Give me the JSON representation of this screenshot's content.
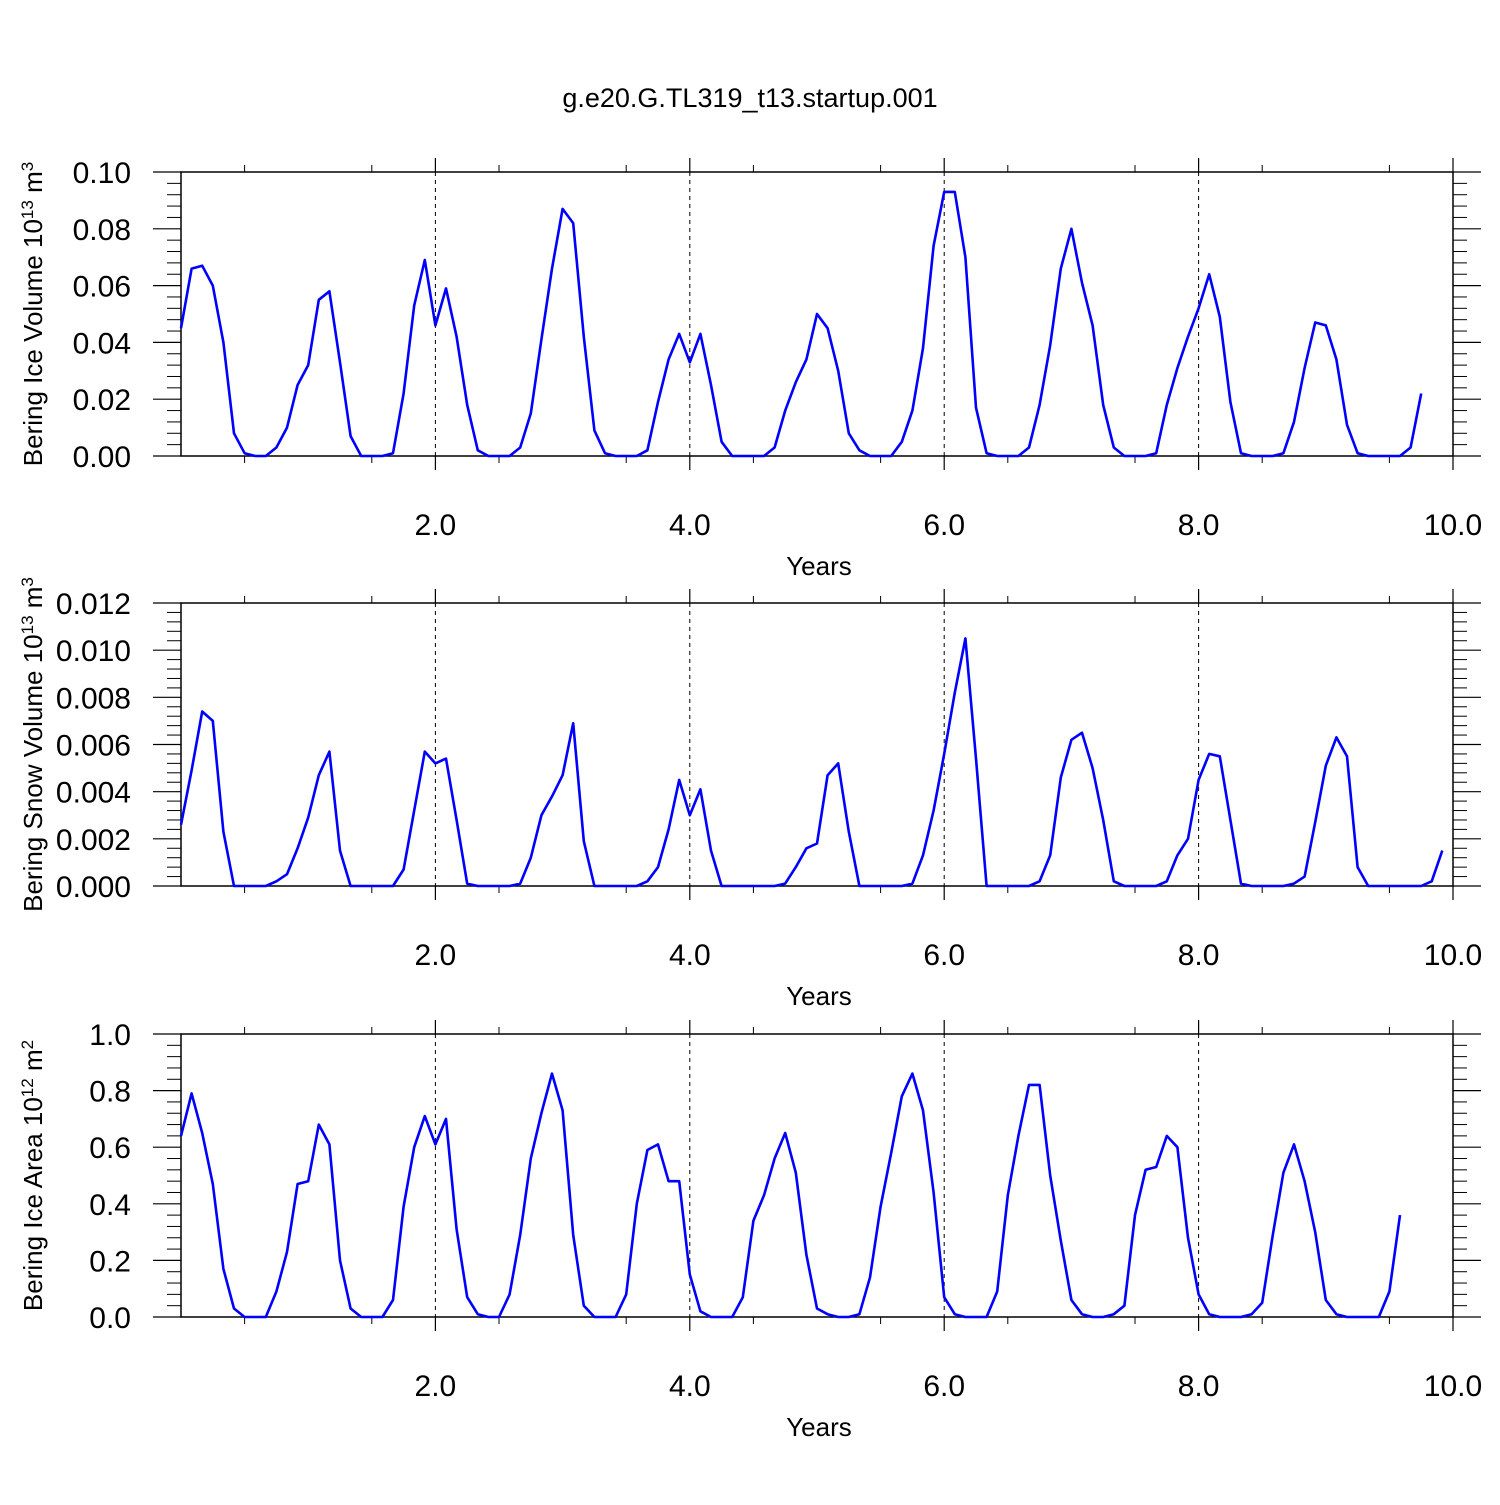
{
  "title": "g.e20.G.TL319_t13.startup.001",
  "line_color": "#0000ff",
  "chart_data": [
    {
      "type": "line",
      "ylabel_main": "Bering Ice Volume 10",
      "ylabel_exp": "13",
      "ylabel_unit": " m",
      "ylabel_unit_exp": "3",
      "xlabel": "Years",
      "xlim": [
        0.0,
        10.0
      ],
      "ylim": [
        0.0,
        0.1
      ],
      "x_ticks": [
        2.0,
        4.0,
        6.0,
        8.0,
        10.0
      ],
      "x_tick_labels": [
        "2.0",
        "4.0",
        "6.0",
        "8.0",
        "10.0"
      ],
      "y_ticks": [
        0.0,
        0.02,
        0.04,
        0.06,
        0.08,
        0.1
      ],
      "y_tick_labels": [
        "0.00",
        "0.02",
        "0.04",
        "0.06",
        "0.08",
        "0.10"
      ],
      "grid": "dashed vertical lines at major x ticks",
      "series": [
        {
          "x_start": 0.0,
          "x_step": 0.08333,
          "values": [
            0.045,
            0.066,
            0.067,
            0.06,
            0.04,
            0.008,
            0.001,
            0.0,
            0.0,
            0.003,
            0.01,
            0.025,
            0.032,
            0.055,
            0.058,
            0.033,
            0.007,
            0.0,
            0.0,
            0.0,
            0.001,
            0.022,
            0.053,
            0.069,
            0.046,
            0.059,
            0.042,
            0.018,
            0.002,
            0.0,
            0.0,
            0.0,
            0.003,
            0.015,
            0.041,
            0.066,
            0.087,
            0.082,
            0.042,
            0.009,
            0.001,
            0.0,
            0.0,
            0.0,
            0.002,
            0.019,
            0.034,
            0.043,
            0.033,
            0.043,
            0.025,
            0.005,
            0.0,
            0.0,
            0.0,
            0.0,
            0.003,
            0.016,
            0.026,
            0.034,
            0.05,
            0.045,
            0.03,
            0.008,
            0.002,
            0.0,
            0.0,
            0.0,
            0.005,
            0.016,
            0.038,
            0.074,
            0.093,
            0.093,
            0.07,
            0.017,
            0.001,
            0.0,
            0.0,
            0.0,
            0.003,
            0.018,
            0.039,
            0.066,
            0.08,
            0.061,
            0.046,
            0.018,
            0.003,
            0.0,
            0.0,
            0.0,
            0.001,
            0.018,
            0.031,
            0.042,
            0.052,
            0.064,
            0.049,
            0.019,
            0.001,
            0.0,
            0.0,
            0.0,
            0.001,
            0.012,
            0.031,
            0.047,
            0.046,
            0.034,
            0.011,
            0.001,
            0.0,
            0.0,
            0.0,
            0.0,
            0.003,
            0.022
          ]
        }
      ]
    },
    {
      "type": "line",
      "ylabel_main": "Bering Snow Volume 10",
      "ylabel_exp": "13",
      "ylabel_unit": " m",
      "ylabel_unit_exp": "3",
      "xlabel": "Years",
      "xlim": [
        0.0,
        10.0
      ],
      "ylim": [
        0.0,
        0.012
      ],
      "x_ticks": [
        2.0,
        4.0,
        6.0,
        8.0,
        10.0
      ],
      "x_tick_labels": [
        "2.0",
        "4.0",
        "6.0",
        "8.0",
        "10.0"
      ],
      "y_ticks": [
        0.0,
        0.002,
        0.004,
        0.006,
        0.008,
        0.01,
        0.012
      ],
      "y_tick_labels": [
        "0.000",
        "0.002",
        "0.004",
        "0.006",
        "0.008",
        "0.010",
        "0.012"
      ],
      "grid": "dashed vertical lines at major x ticks",
      "series": [
        {
          "x_start": 0.0,
          "x_step": 0.08333,
          "values": [
            0.0026,
            0.0049,
            0.0074,
            0.007,
            0.0023,
            0.0,
            0.0,
            0.0,
            0.0,
            0.0002,
            0.0005,
            0.0016,
            0.0029,
            0.0047,
            0.0057,
            0.0015,
            0.0,
            0.0,
            0.0,
            0.0,
            0.0,
            0.0007,
            0.0032,
            0.0057,
            0.0052,
            0.0054,
            0.0028,
            0.0001,
            0.0,
            0.0,
            0.0,
            0.0,
            0.0001,
            0.0012,
            0.003,
            0.0038,
            0.0047,
            0.0069,
            0.0019,
            0.0,
            0.0,
            0.0,
            0.0,
            0.0,
            0.0002,
            0.0008,
            0.0024,
            0.0045,
            0.003,
            0.0041,
            0.0015,
            0.0,
            0.0,
            0.0,
            0.0,
            0.0,
            0.0,
            0.0001,
            0.0008,
            0.0016,
            0.0018,
            0.0047,
            0.0052,
            0.0023,
            0.0,
            0.0,
            0.0,
            0.0,
            0.0,
            0.0001,
            0.0013,
            0.0032,
            0.0056,
            0.0082,
            0.0105,
            0.0054,
            0.0,
            0.0,
            0.0,
            0.0,
            0.0,
            0.0002,
            0.0013,
            0.0046,
            0.0062,
            0.0065,
            0.005,
            0.0028,
            0.0002,
            0.0,
            0.0,
            0.0,
            0.0,
            0.0002,
            0.0013,
            0.002,
            0.0045,
            0.0056,
            0.0055,
            0.0028,
            0.0001,
            0.0,
            0.0,
            0.0,
            0.0,
            0.0001,
            0.0004,
            0.0027,
            0.0051,
            0.0063,
            0.0055,
            0.0008,
            0.0,
            0.0,
            0.0,
            0.0,
            0.0,
            0.0,
            0.0002,
            0.0015
          ]
        }
      ]
    },
    {
      "type": "line",
      "ylabel_main": "Bering Ice Area 10",
      "ylabel_exp": "12",
      "ylabel_unit": " m",
      "ylabel_unit_exp": "2",
      "xlabel": "Years",
      "xlim": [
        0.0,
        10.0
      ],
      "ylim": [
        0.0,
        1.0
      ],
      "x_ticks": [
        2.0,
        4.0,
        6.0,
        8.0,
        10.0
      ],
      "x_tick_labels": [
        "2.0",
        "4.0",
        "6.0",
        "8.0",
        "10.0"
      ],
      "y_ticks": [
        0.0,
        0.2,
        0.4,
        0.6,
        0.8,
        1.0
      ],
      "y_tick_labels": [
        "0.0",
        "0.2",
        "0.4",
        "0.6",
        "0.8",
        "1.0"
      ],
      "grid": "dashed vertical lines at major x ticks",
      "series": [
        {
          "x_start": 0.0,
          "x_step": 0.08333,
          "values": [
            0.64,
            0.79,
            0.65,
            0.47,
            0.17,
            0.03,
            0.0,
            0.0,
            0.0,
            0.09,
            0.23,
            0.47,
            0.48,
            0.68,
            0.61,
            0.2,
            0.03,
            0.0,
            0.0,
            0.0,
            0.06,
            0.39,
            0.6,
            0.71,
            0.61,
            0.7,
            0.31,
            0.07,
            0.01,
            0.0,
            0.0,
            0.08,
            0.29,
            0.56,
            0.72,
            0.86,
            0.73,
            0.29,
            0.04,
            0.0,
            0.0,
            0.0,
            0.08,
            0.4,
            0.59,
            0.61,
            0.48,
            0.48,
            0.15,
            0.02,
            0.0,
            0.0,
            0.0,
            0.07,
            0.34,
            0.43,
            0.56,
            0.65,
            0.51,
            0.22,
            0.03,
            0.01,
            0.0,
            0.0,
            0.01,
            0.14,
            0.39,
            0.58,
            0.78,
            0.86,
            0.73,
            0.44,
            0.07,
            0.01,
            0.0,
            0.0,
            0.0,
            0.09,
            0.43,
            0.64,
            0.82,
            0.82,
            0.5,
            0.27,
            0.06,
            0.01,
            0.0,
            0.0,
            0.01,
            0.04,
            0.36,
            0.52,
            0.53,
            0.64,
            0.6,
            0.28,
            0.08,
            0.01,
            0.0,
            0.0,
            0.0,
            0.01,
            0.05,
            0.29,
            0.51,
            0.61,
            0.48,
            0.3,
            0.06,
            0.01,
            0.0,
            0.0,
            0.0,
            0.0,
            0.09,
            0.36
          ]
        }
      ]
    }
  ]
}
